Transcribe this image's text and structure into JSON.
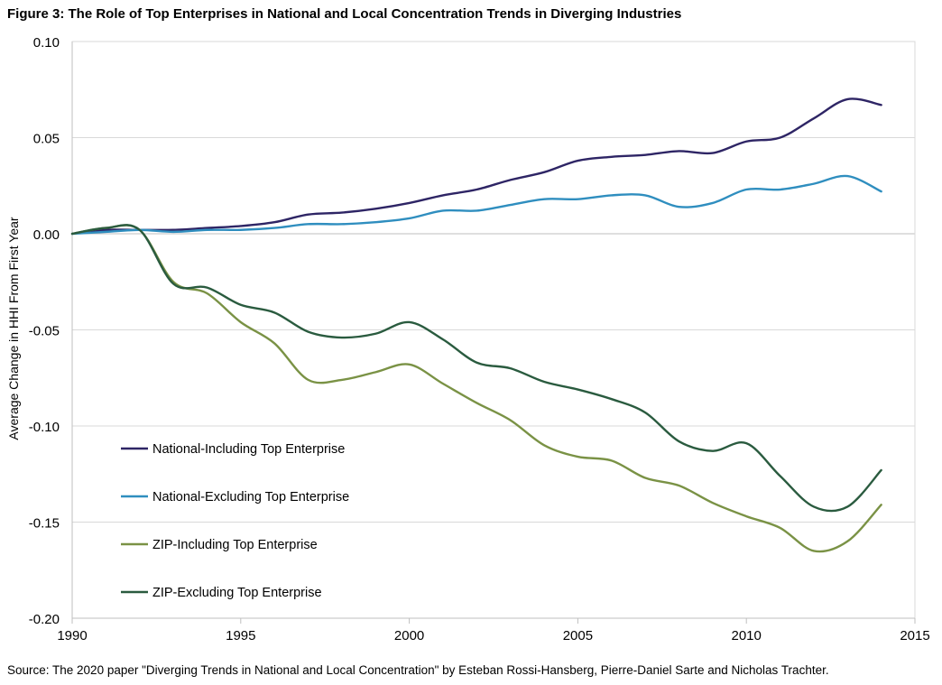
{
  "title": "Figure 3: The Role of Top Enterprises in National and Local Concentration Trends in Diverging Industries",
  "source": "Source: The 2020  paper \"Diverging Trends in National and Local Concentration\" by Esteban Rossi-Hansberg, Pierre-Daniel Sarte and Nicholas Trachter.",
  "chart_data": {
    "type": "line",
    "title": "Figure 3: The Role of Top Enterprises in National and Local Concentration Trends in Diverging Industries",
    "xlabel": "",
    "ylabel": "Average Change in HHI From First Year",
    "xlim": [
      1990,
      2015
    ],
    "ylim": [
      -0.2,
      0.1
    ],
    "x_ticks": [
      1990,
      1995,
      2000,
      2005,
      2010,
      2015
    ],
    "x_tick_labels": [
      "1990",
      "1995",
      "2000",
      "2005",
      "2010",
      "2015"
    ],
    "y_ticks": [
      0.1,
      0.05,
      0.0,
      -0.05,
      -0.1,
      -0.15,
      -0.2
    ],
    "y_tick_labels": [
      "0.10",
      "0.05",
      "0.00",
      "-0.05",
      "-0.10",
      "-0.15",
      "-0.20"
    ],
    "grid": "horizontal",
    "legend_position": "bottom-left",
    "x": [
      1990,
      1991,
      1992,
      1993,
      1994,
      1995,
      1996,
      1997,
      1998,
      1999,
      2000,
      2001,
      2002,
      2003,
      2004,
      2005,
      2006,
      2007,
      2008,
      2009,
      2010,
      2011,
      2012,
      2013,
      2014
    ],
    "series": [
      {
        "name": "National-Including Top Enterprise",
        "color": "#2e2565",
        "values": [
          0.0,
          0.002,
          0.002,
          0.002,
          0.003,
          0.004,
          0.006,
          0.01,
          0.011,
          0.013,
          0.016,
          0.02,
          0.023,
          0.028,
          0.032,
          0.038,
          0.04,
          0.041,
          0.043,
          0.042,
          0.048,
          0.05,
          0.06,
          0.07,
          0.067
        ]
      },
      {
        "name": "National-Excluding Top Enterprise",
        "color": "#2f8ebf",
        "values": [
          0.0,
          0.001,
          0.002,
          0.001,
          0.002,
          0.002,
          0.003,
          0.005,
          0.005,
          0.006,
          0.008,
          0.012,
          0.012,
          0.015,
          0.018,
          0.018,
          0.02,
          0.02,
          0.014,
          0.016,
          0.023,
          0.023,
          0.026,
          0.03,
          0.022
        ]
      },
      {
        "name": "ZIP-Including Top Enterprise",
        "color": "#7a9245",
        "values": [
          0.0,
          0.003,
          0.002,
          -0.025,
          -0.031,
          -0.046,
          -0.057,
          -0.076,
          -0.076,
          -0.072,
          -0.068,
          -0.078,
          -0.088,
          -0.097,
          -0.11,
          -0.116,
          -0.118,
          -0.127,
          -0.131,
          -0.14,
          -0.147,
          -0.153,
          -0.165,
          -0.16,
          -0.141
        ]
      },
      {
        "name": "ZIP-Excluding Top Enterprise",
        "color": "#2a5b3f",
        "values": [
          0.0,
          0.003,
          0.002,
          -0.026,
          -0.028,
          -0.037,
          -0.041,
          -0.051,
          -0.054,
          -0.052,
          -0.046,
          -0.055,
          -0.067,
          -0.07,
          -0.077,
          -0.081,
          -0.086,
          -0.093,
          -0.108,
          -0.113,
          -0.109,
          -0.126,
          -0.142,
          -0.142,
          -0.123
        ]
      }
    ]
  }
}
